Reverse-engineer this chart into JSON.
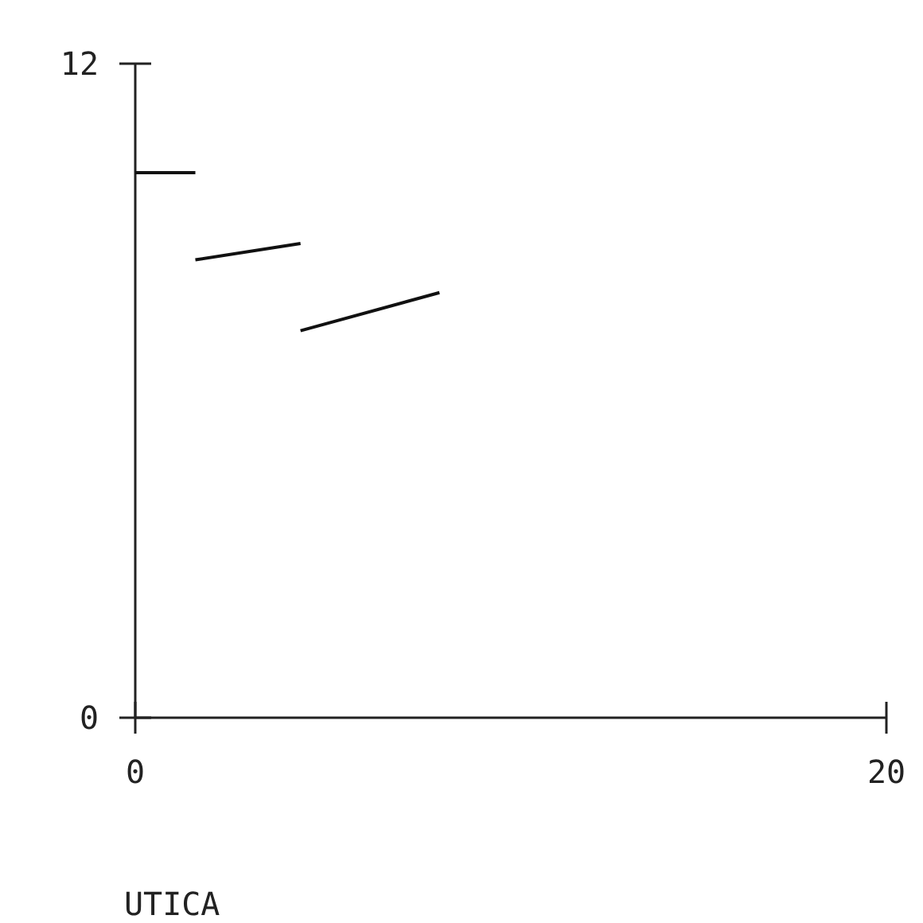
{
  "chart_data": {
    "type": "line",
    "xlabel": "UTICA",
    "xlim": [
      0,
      20
    ],
    "ylim": [
      0,
      12
    ],
    "xticks": [
      0,
      20
    ],
    "yticks": [
      0,
      12
    ],
    "grid": false,
    "marker": "none",
    "line_style": "solid",
    "series": [
      {
        "color": "#111111",
        "x": [
          0,
          1.6
        ],
        "values": [
          10,
          10
        ]
      },
      {
        "color": "#111111",
        "x": [
          1.6,
          4.4
        ],
        "values": [
          8.4,
          8.7
        ]
      },
      {
        "color": "#111111",
        "x": [
          4.4,
          8.1
        ],
        "values": [
          7.1,
          7.8
        ]
      }
    ]
  }
}
